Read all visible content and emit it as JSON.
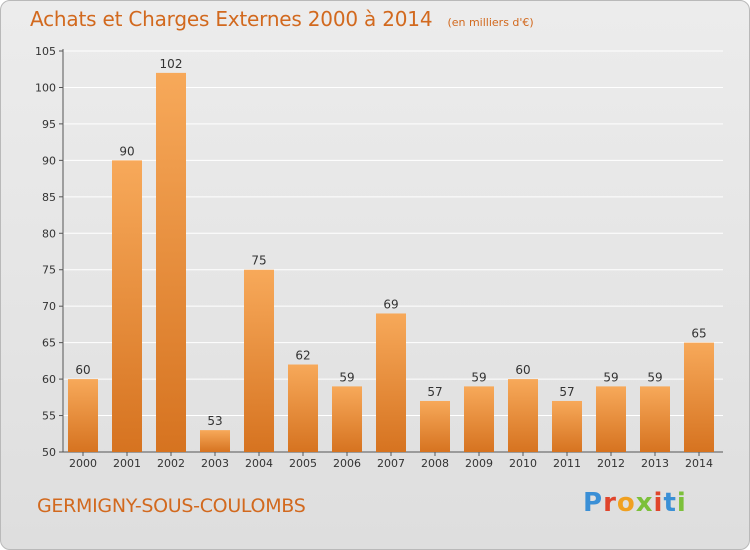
{
  "header": {
    "title": "Achats et Charges Externes 2000 à 2014",
    "subtitle": "(en milliers d'€)"
  },
  "footer": {
    "commune": "GERMIGNY-SOUS-COULOMBS",
    "logo_text": "Proxiti",
    "logo_colors": [
      "#3a8fd6",
      "#e0452c",
      "#f0a020",
      "#7cc03a",
      "#e0452c",
      "#3a8fd6",
      "#7cc03a"
    ]
  },
  "colors": {
    "bar_light": "#f7a95a",
    "bar_dark": "#d67320",
    "text": "#333333",
    "accent": "#d2691e"
  },
  "chart_data": {
    "type": "bar",
    "categories": [
      "2000",
      "2001",
      "2002",
      "2003",
      "2004",
      "2005",
      "2006",
      "2007",
      "2008",
      "2009",
      "2010",
      "2011",
      "2012",
      "2013",
      "2014"
    ],
    "values": [
      60,
      90,
      102,
      53,
      75,
      62,
      59,
      69,
      57,
      59,
      60,
      57,
      59,
      59,
      65
    ],
    "ylim": [
      50,
      105
    ],
    "yticks": [
      50,
      55,
      60,
      65,
      70,
      75,
      80,
      85,
      90,
      95,
      100,
      105
    ],
    "grid": true,
    "data_labels": true
  }
}
